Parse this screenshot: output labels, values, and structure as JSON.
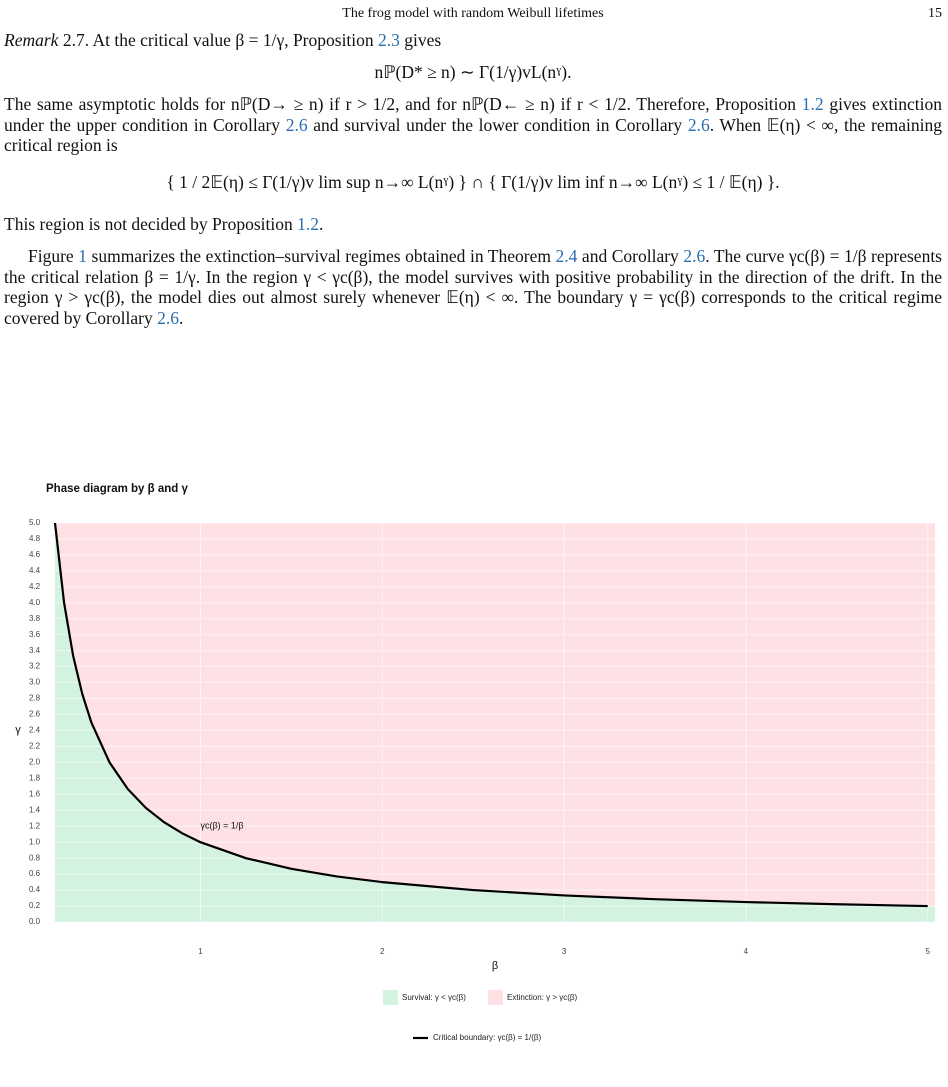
{
  "header": {
    "title": "The frog model with random Weibull lifetimes",
    "page": "15"
  },
  "remark": {
    "label": "Remark",
    "segments": [
      " 2.7. At the critical value β = 1/γ, Proposition ",
      "2.3",
      " gives"
    ]
  },
  "equations": [
    "nℙ(D* ≥ n) ∼ Γ(1/γ)vL(nˠ).",
    "{ 1 / 2𝔼(η) ≤ Γ(1/γ)v lim sup n→∞ L(nˠ) } ∩ { Γ(1/γ)v lim inf n→∞ L(nˠ) ≤ 1 / 𝔼(η) }."
  ],
  "paragraphs": [
    [
      "The same asymptotic holds for nℙ(D→ ≥ n) if r > 1/2, and for nℙ(D← ≥ n) if r < 1/2. Therefore, Proposition ",
      "1.2",
      " gives extinction under the upper condition in Corollary ",
      "2.6",
      " and survival under the lower condition in Corollary ",
      "2.6",
      ". When 𝔼(η) < ∞, the remaining critical region is"
    ],
    [
      "This region is not decided by Proposition ",
      "1.2",
      "."
    ],
    [
      "Figure ",
      "1",
      " summarizes the extinction–survival regimes obtained in Theorem ",
      "2.4",
      " and Corollary ",
      "2.6",
      ". The curve γc(β) = 1/β represents the critical relation β = 1/γ. In the region γ < γc(β), the model survives with positive probability in the direction of the drift. In the region γ > γc(β), the model dies out almost surely whenever 𝔼(η) < ∞. The boundary γ = γc(β) corresponds to the critical regime covered by Corollary ",
      "2.6",
      "."
    ]
  ],
  "chart_data": {
    "type": "line",
    "title": "Phase diagram by β and γ",
    "x_label": "β",
    "y_label": "γ",
    "x": [
      0.2,
      0.25,
      0.3,
      0.35,
      0.4,
      0.5,
      0.6,
      0.7,
      0.8,
      0.9,
      1,
      1.25,
      1.5,
      1.75,
      2,
      2.5,
      3,
      3.5,
      4,
      4.5,
      5
    ],
    "series": [
      {
        "name": "Critical boundary: γc(β) = 1/(β)",
        "color": "#000000",
        "values": [
          5,
          4,
          3.333,
          2.857,
          2.5,
          2,
          1.667,
          1.429,
          1.25,
          1.111,
          1,
          0.8,
          0.667,
          0.571,
          0.5,
          0.4,
          0.333,
          0.286,
          0.25,
          0.222,
          0.2
        ]
      }
    ],
    "regions": [
      {
        "name": "Survival: γ < γc(β)",
        "color": "#d3f2df"
      },
      {
        "name": "Extinction: γ > γc(β)",
        "color": "#fde1e4"
      }
    ],
    "annotation": "γc(β) = 1/β",
    "xlim": [
      0.2,
      5.04
    ],
    "ylim": [
      0,
      5
    ],
    "xticks": [
      1,
      2,
      3,
      4,
      5
    ],
    "yticks": [
      {
        "value": 0,
        "label": "0.0"
      },
      0.2,
      0.4,
      0.6,
      0.8,
      {
        "value": 1,
        "label": "1.0"
      },
      1.2,
      1.4,
      1.6,
      1.8,
      {
        "value": 2,
        "label": "2.0"
      },
      2.2,
      2.4,
      2.6,
      2.8,
      {
        "value": 3,
        "label": "3.0"
      },
      3.2,
      3.4,
      3.6,
      3.8,
      {
        "value": 4,
        "label": "4.0"
      },
      4.2,
      4.4,
      4.6,
      4.8,
      {
        "value": 5,
        "label": "5.0"
      }
    ],
    "grid": true
  }
}
